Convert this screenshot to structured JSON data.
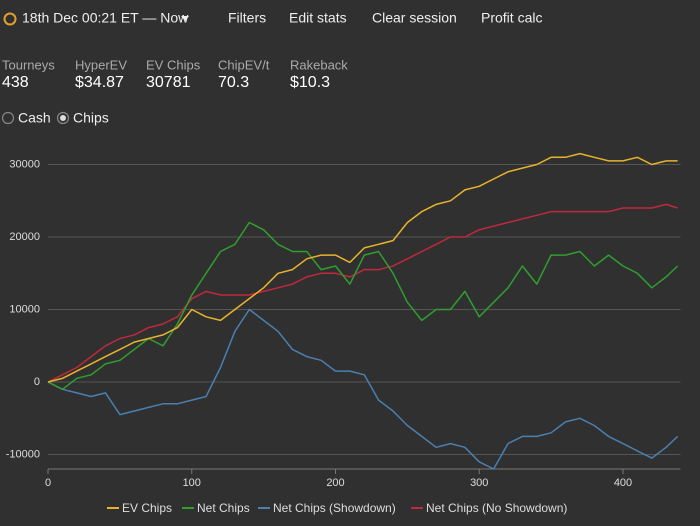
{
  "header": {
    "date_range": "18th Dec 00:21 ET — Now",
    "buttons": [
      "Filters",
      "Edit stats",
      "Clear session",
      "Profit calc"
    ]
  },
  "stats": [
    {
      "label": "Tourneys",
      "value": "438"
    },
    {
      "label": "HyperEV",
      "value": "$34.87"
    },
    {
      "label": "EV Chips",
      "value": "30781"
    },
    {
      "label": "ChipEV/t",
      "value": "70.3"
    },
    {
      "label": "Rakeback",
      "value": "$10.3"
    }
  ],
  "radios": [
    {
      "label": "Cash",
      "checked": false
    },
    {
      "label": "Chips",
      "checked": true
    }
  ],
  "chart_data": {
    "type": "line",
    "x": [
      0,
      10,
      20,
      30,
      40,
      50,
      60,
      70,
      80,
      90,
      100,
      110,
      120,
      130,
      140,
      150,
      160,
      170,
      180,
      190,
      200,
      210,
      220,
      230,
      240,
      250,
      260,
      270,
      280,
      290,
      300,
      310,
      320,
      330,
      340,
      350,
      360,
      370,
      380,
      390,
      400,
      410,
      420,
      430,
      438
    ],
    "series": [
      {
        "name": "EV Chips",
        "color": "#e8b32c",
        "values": [
          0,
          500,
          1500,
          2500,
          3500,
          4500,
          5500,
          6000,
          6500,
          7500,
          10000,
          9000,
          8500,
          10000,
          11500,
          13000,
          15000,
          15500,
          17000,
          17500,
          17500,
          16500,
          18500,
          19000,
          19500,
          22000,
          23500,
          24500,
          25000,
          26500,
          27000,
          28000,
          29000,
          29500,
          30000,
          31000,
          31000,
          31500,
          31000,
          30500,
          30500,
          31000,
          30000,
          30500,
          30500
        ]
      },
      {
        "name": "Net Chips",
        "color": "#2f9e2f",
        "values": [
          0,
          -1000,
          500,
          1000,
          2500,
          3000,
          4500,
          6000,
          5000,
          8000,
          12000,
          15000,
          18000,
          19000,
          22000,
          21000,
          19000,
          18000,
          18000,
          15500,
          16000,
          13500,
          17500,
          18000,
          15000,
          11000,
          8500,
          10000,
          10000,
          12500,
          9000,
          11000,
          13000,
          16000,
          13500,
          17500,
          17500,
          18000,
          16000,
          17500,
          16000,
          15000,
          13000,
          14500,
          16000
        ]
      },
      {
        "name": "Net Chips (Showdown)",
        "color": "#4a7fb0",
        "values": [
          0,
          -1000,
          -1500,
          -2000,
          -1500,
          -4500,
          -4000,
          -3500,
          -3000,
          -3000,
          -2500,
          -2000,
          2000,
          7000,
          10000,
          8500,
          7000,
          4500,
          3500,
          3000,
          1500,
          1500,
          1000,
          -2500,
          -4000,
          -6000,
          -7500,
          -9000,
          -8500,
          -9000,
          -11000,
          -12000,
          -8500,
          -7500,
          -7500,
          -7000,
          -5500,
          -5000,
          -6000,
          -7500,
          -8500,
          -9500,
          -10500,
          -9000,
          -7500
        ]
      },
      {
        "name": "Net Chips (No Showdown)",
        "color": "#c0283c",
        "values": [
          0,
          1000,
          2000,
          3500,
          5000,
          6000,
          6500,
          7500,
          8000,
          9000,
          11500,
          12500,
          12000,
          12000,
          12000,
          12500,
          13000,
          13500,
          14500,
          15000,
          15000,
          14500,
          15500,
          15500,
          16000,
          17000,
          18000,
          19000,
          20000,
          20000,
          21000,
          21500,
          22000,
          22500,
          23000,
          23500,
          23500,
          23500,
          23500,
          23500,
          24000,
          24000,
          24000,
          24500,
          24000
        ]
      }
    ],
    "xlim": [
      0,
      440
    ],
    "ylim": [
      -12000,
      32000
    ],
    "xticks": [
      0,
      100,
      200,
      300,
      400
    ],
    "yticks": [
      -10000,
      0,
      10000,
      20000,
      30000
    ],
    "grid": true,
    "legend": "bottom"
  }
}
